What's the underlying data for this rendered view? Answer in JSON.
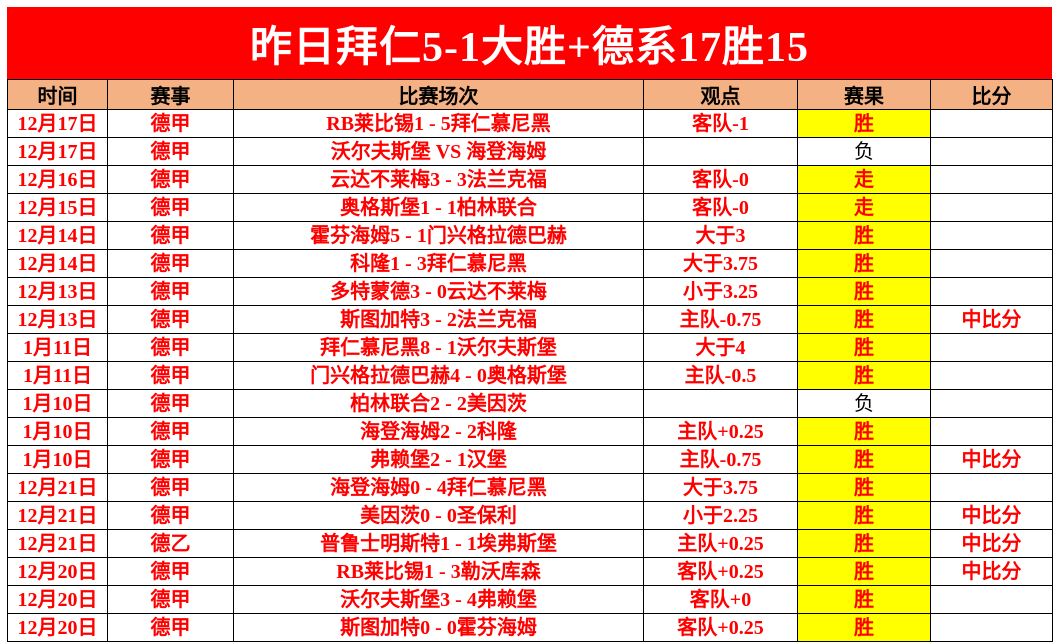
{
  "banner": {
    "title": "昨日拜仁5-1大胜+德系17胜15"
  },
  "colors": {
    "banner_background": "#FF0000",
    "banner_text": "#FFFFFF",
    "header_background": "#F4B183",
    "header_text": "#000000",
    "body_text_red": "#FF0000",
    "result_highlight_yellow": "#FFFF00",
    "result_loss_text": "#000000",
    "grid_border": "#000000"
  },
  "table": {
    "columns": [
      "时间",
      "赛事",
      "比赛场次",
      "观点",
      "赛果",
      "比分"
    ],
    "rows": [
      {
        "date": "12月17日",
        "league": "德甲",
        "match": "RB莱比锡1 - 5拜仁慕尼黑",
        "view": "客队-1",
        "result": "胜",
        "result_highlight": true,
        "score": ""
      },
      {
        "date": "12月17日",
        "league": "德甲",
        "match": "沃尔夫斯堡 VS 海登海姆",
        "view": "",
        "result": "负",
        "result_highlight": false,
        "score": ""
      },
      {
        "date": "12月16日",
        "league": "德甲",
        "match": "云达不莱梅3 - 3法兰克福",
        "view": "客队-0",
        "result": "走",
        "result_highlight": true,
        "score": ""
      },
      {
        "date": "12月15日",
        "league": "德甲",
        "match": "奥格斯堡1 - 1柏林联合",
        "view": "客队-0",
        "result": "走",
        "result_highlight": true,
        "score": ""
      },
      {
        "date": "12月14日",
        "league": "德甲",
        "match": "霍芬海姆5 - 1门兴格拉德巴赫",
        "view": "大于3",
        "result": "胜",
        "result_highlight": true,
        "score": ""
      },
      {
        "date": "12月14日",
        "league": "德甲",
        "match": "科隆1 - 3拜仁慕尼黑",
        "view": "大于3.75",
        "result": "胜",
        "result_highlight": true,
        "score": ""
      },
      {
        "date": "12月13日",
        "league": "德甲",
        "match": "多特蒙德3 - 0云达不莱梅",
        "view": "小于3.25",
        "result": "胜",
        "result_highlight": true,
        "score": ""
      },
      {
        "date": "12月13日",
        "league": "德甲",
        "match": "斯图加特3 - 2法兰克福",
        "view": "主队-0.75",
        "result": "胜",
        "result_highlight": true,
        "score": "中比分"
      },
      {
        "date": "1月11日",
        "league": "德甲",
        "match": "拜仁慕尼黑8 - 1沃尔夫斯堡",
        "view": "大于4",
        "result": "胜",
        "result_highlight": true,
        "score": ""
      },
      {
        "date": "1月11日",
        "league": "德甲",
        "match": "门兴格拉德巴赫4 - 0奥格斯堡",
        "view": "主队-0.5",
        "result": "胜",
        "result_highlight": true,
        "score": ""
      },
      {
        "date": "1月10日",
        "league": "德甲",
        "match": "柏林联合2 - 2美因茨",
        "view": "",
        "result": "负",
        "result_highlight": false,
        "score": ""
      },
      {
        "date": "1月10日",
        "league": "德甲",
        "match": "海登海姆2 - 2科隆",
        "view": "主队+0.25",
        "result": "胜",
        "result_highlight": true,
        "score": ""
      },
      {
        "date": "1月10日",
        "league": "德甲",
        "match": "弗赖堡2 - 1汉堡",
        "view": "主队-0.75",
        "result": "胜",
        "result_highlight": true,
        "score": "中比分"
      },
      {
        "date": "12月21日",
        "league": "德甲",
        "match": "海登海姆0 - 4拜仁慕尼黑",
        "view": "大于3.75",
        "result": "胜",
        "result_highlight": true,
        "score": ""
      },
      {
        "date": "12月21日",
        "league": "德甲",
        "match": "美因茨0 - 0圣保利",
        "view": "小于2.25",
        "result": "胜",
        "result_highlight": true,
        "score": "中比分"
      },
      {
        "date": "12月21日",
        "league": "德乙",
        "match": "普鲁士明斯特1 - 1埃弗斯堡",
        "view": "主队+0.25",
        "result": "胜",
        "result_highlight": true,
        "score": "中比分"
      },
      {
        "date": "12月20日",
        "league": "德甲",
        "match": "RB莱比锡1 - 3勒沃库森",
        "view": "客队+0.25",
        "result": "胜",
        "result_highlight": true,
        "score": "中比分"
      },
      {
        "date": "12月20日",
        "league": "德甲",
        "match": "沃尔夫斯堡3 - 4弗赖堡",
        "view": "客队+0",
        "result": "胜",
        "result_highlight": true,
        "score": ""
      },
      {
        "date": "12月20日",
        "league": "德甲",
        "match": "斯图加特0 - 0霍芬海姆",
        "view": "客队+0.25",
        "result": "胜",
        "result_highlight": true,
        "score": ""
      }
    ]
  }
}
